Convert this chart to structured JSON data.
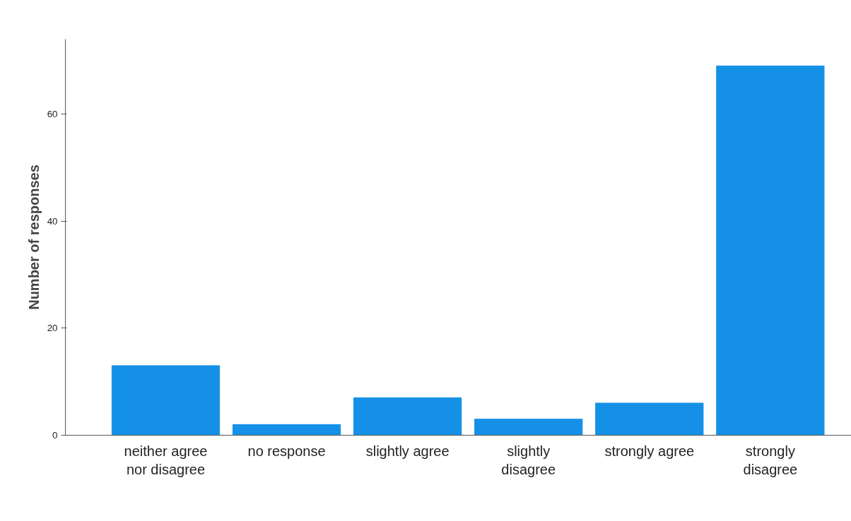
{
  "chart_data": {
    "type": "bar",
    "ylabel": "Number of responses",
    "categories": [
      "neither agree nor disagree",
      "no response",
      "slightly agree",
      "slightly disagree",
      "strongly agree",
      "strongly disagree"
    ],
    "values": [
      13,
      2,
      7,
      3,
      6,
      69
    ],
    "color": "#1491e6",
    "ylim": [
      0,
      74
    ],
    "yticks": [
      0,
      20,
      40,
      60
    ],
    "grid": false
  }
}
